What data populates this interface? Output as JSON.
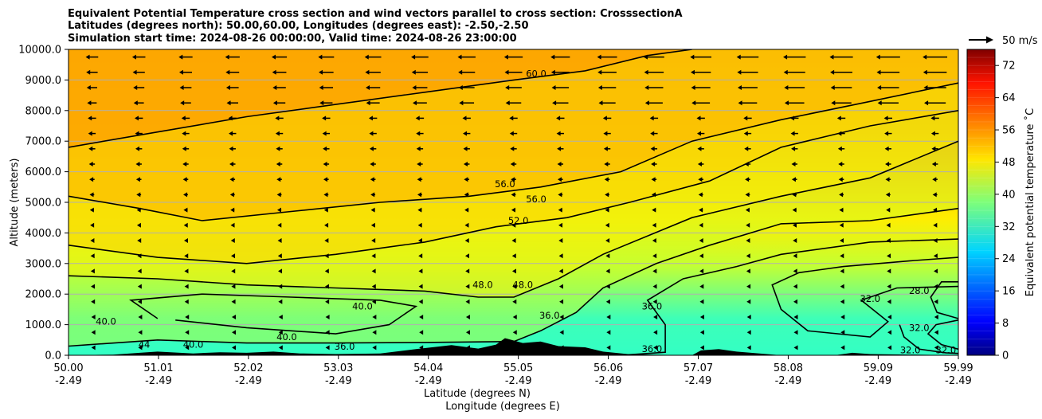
{
  "chart_data": {
    "type": "contourf",
    "title_lines": [
      "Equivalent Potential Temperature cross section and wind vectors parallel to cross section: CrosssectionA",
      "Latitudes (degrees north): 50.00,60.00, Longitudes (degrees east): -2.50,-2.50",
      "Simulation start time: 2024-08-26 00:00:00, Valid time: 2024-08-26 23:00:00"
    ],
    "xlabel_lat": "Latitude (degrees N)",
    "xlabel_lon": "Longitude (degrees E)",
    "ylabel": "Altitude (meters)",
    "x_range": [
      50.0,
      59.99
    ],
    "ylim": [
      0,
      10000
    ],
    "x_ticks": [
      {
        "lat": "50.00",
        "lon": "-2.49",
        "value": 50.0
      },
      {
        "lat": "51.01",
        "lon": "-2.49",
        "value": 51.01
      },
      {
        "lat": "52.02",
        "lon": "-2.49",
        "value": 52.02
      },
      {
        "lat": "53.03",
        "lon": "-2.49",
        "value": 53.03
      },
      {
        "lat": "54.04",
        "lon": "-2.49",
        "value": 54.04
      },
      {
        "lat": "55.05",
        "lon": "-2.49",
        "value": 55.05
      },
      {
        "lat": "56.06",
        "lon": "-2.49",
        "value": 56.06
      },
      {
        "lat": "57.07",
        "lon": "-2.49",
        "value": 57.07
      },
      {
        "lat": "58.08",
        "lon": "-2.49",
        "value": 58.08
      },
      {
        "lat": "59.09",
        "lon": "-2.49",
        "value": 59.09
      },
      {
        "lat": "59.99",
        "lon": "-2.49",
        "value": 59.99
      }
    ],
    "y_ticks": [
      "0.0",
      "1000.0",
      "2000.0",
      "3000.0",
      "4000.0",
      "5000.0",
      "6000.0",
      "7000.0",
      "8000.0",
      "9000.0",
      "10000.0"
    ],
    "grid": "horizontal",
    "colorbar": {
      "label": "Equivalent potential temperature $^\\circ$C",
      "label_text": "Equivalent potential temperature ˚C",
      "min": 0,
      "max": 76,
      "ticks": [
        "0",
        "8",
        "16",
        "24",
        "32",
        "40",
        "48",
        "56",
        "64",
        "72"
      ]
    },
    "quiver_key": {
      "label": "50 m/s",
      "value": 50
    },
    "contours": [
      {
        "level": 32,
        "label": "32.0",
        "points": [
          [
            59.33,
            1000
          ],
          [
            59.38,
            600
          ],
          [
            59.55,
            200
          ],
          [
            59.85,
            80
          ],
          [
            59.99,
            60
          ]
        ]
      },
      {
        "level": 32,
        "label": "32.0",
        "points": [
          [
            59.99,
            1150
          ],
          [
            59.74,
            1000
          ],
          [
            59.65,
            700
          ],
          [
            59.8,
            350
          ],
          [
            59.99,
            200
          ]
        ]
      },
      {
        "level": 28,
        "label": "28.0",
        "points": [
          [
            59.99,
            2400
          ],
          [
            59.8,
            2400
          ],
          [
            59.68,
            1900
          ],
          [
            59.75,
            1400
          ],
          [
            59.99,
            1200
          ]
        ]
      },
      {
        "level": 32,
        "label": "32.0",
        "points": [
          [
            59.99,
            3200
          ],
          [
            59.5,
            3100
          ],
          [
            58.7,
            2900
          ],
          [
            58.2,
            2700
          ],
          [
            57.9,
            2300
          ],
          [
            58.0,
            1500
          ],
          [
            58.3,
            800
          ],
          [
            59.0,
            600
          ],
          [
            59.2,
            1100
          ],
          [
            58.9,
            1800
          ],
          [
            59.3,
            2200
          ],
          [
            59.99,
            2250
          ]
        ]
      },
      {
        "level": 36,
        "label": "36.0",
        "points": [
          [
            56.2,
            0
          ],
          [
            56.7,
            100
          ],
          [
            56.7,
            1000
          ],
          [
            56.5,
            1800
          ],
          [
            56.9,
            2500
          ],
          [
            57.5,
            2900
          ],
          [
            58.0,
            3300
          ],
          [
            59.0,
            3700
          ],
          [
            59.99,
            3800
          ]
        ]
      },
      {
        "level": 40,
        "label": "40.0",
        "points": [
          [
            51.0,
            1200
          ],
          [
            50.7,
            1800
          ],
          [
            51.5,
            2000
          ],
          [
            52.5,
            1900
          ],
          [
            53.5,
            1800
          ],
          [
            53.9,
            1600
          ],
          [
            53.6,
            1000
          ],
          [
            53.0,
            700
          ],
          [
            52.0,
            900
          ],
          [
            51.2,
            1150
          ]
        ]
      },
      {
        "level": 44,
        "label": "44.0",
        "points": [
          [
            50.0,
            300
          ],
          [
            51.0,
            500
          ],
          [
            52.0,
            400
          ],
          [
            53.0,
            400
          ],
          [
            54.0,
            420
          ],
          [
            55.0,
            450
          ],
          [
            55.3,
            800
          ],
          [
            55.7,
            1400
          ],
          [
            56.0,
            2200
          ],
          [
            56.6,
            3000
          ],
          [
            57.2,
            3600
          ],
          [
            58.0,
            4300
          ],
          [
            59.0,
            4400
          ],
          [
            59.99,
            4800
          ]
        ]
      },
      {
        "level": 48,
        "label": "48.0",
        "points": [
          [
            50.0,
            2600
          ],
          [
            51.0,
            2500
          ],
          [
            52.0,
            2300
          ],
          [
            53.0,
            2200
          ],
          [
            54.0,
            2100
          ],
          [
            54.6,
            1900
          ],
          [
            55.0,
            1900
          ],
          [
            55.5,
            2500
          ],
          [
            56.0,
            3300
          ],
          [
            57.0,
            4500
          ],
          [
            58.0,
            5200
          ],
          [
            59.0,
            5800
          ],
          [
            59.99,
            7000
          ]
        ]
      },
      {
        "level": 52,
        "label": "52.0",
        "points": [
          [
            50.0,
            3600
          ],
          [
            51.0,
            3200
          ],
          [
            52.0,
            3000
          ],
          [
            53.0,
            3300
          ],
          [
            54.0,
            3700
          ],
          [
            54.8,
            4200
          ],
          [
            55.6,
            4500
          ],
          [
            56.3,
            5000
          ],
          [
            57.2,
            5700
          ],
          [
            58.0,
            6800
          ],
          [
            59.0,
            7500
          ],
          [
            59.99,
            8000
          ]
        ]
      },
      {
        "level": 56,
        "label": "56.0",
        "points": [
          [
            50.0,
            5200
          ],
          [
            50.8,
            4800
          ],
          [
            51.5,
            4400
          ],
          [
            52.5,
            4700
          ],
          [
            53.5,
            5000
          ],
          [
            54.5,
            5200
          ],
          [
            55.3,
            5500
          ],
          [
            56.2,
            6000
          ],
          [
            57.0,
            7000
          ],
          [
            58.0,
            7700
          ],
          [
            59.0,
            8300
          ],
          [
            59.99,
            8900
          ]
        ]
      },
      {
        "level": 60,
        "label": "60.0",
        "points": [
          [
            50.0,
            6800
          ],
          [
            51.0,
            7300
          ],
          [
            52.0,
            7800
          ],
          [
            53.0,
            8200
          ],
          [
            54.0,
            8600
          ],
          [
            55.0,
            9000
          ],
          [
            55.8,
            9300
          ],
          [
            56.5,
            9800
          ],
          [
            57.0,
            10000
          ]
        ]
      }
    ],
    "contour_labels": [
      {
        "text": "40.0",
        "x": 50.42,
        "y": 1000
      },
      {
        "text": "44",
        "x": 50.85,
        "y": 250
      },
      {
        "text": "40.0",
        "x": 51.4,
        "y": 250
      },
      {
        "text": "40.0",
        "x": 52.45,
        "y": 500
      },
      {
        "text": "40.0",
        "x": 53.3,
        "y": 1500
      },
      {
        "text": "36.0",
        "x": 53.1,
        "y": 180
      },
      {
        "text": "48.0",
        "x": 54.65,
        "y": 2200
      },
      {
        "text": "48.0",
        "x": 55.1,
        "y": 2200
      },
      {
        "text": "36.0",
        "x": 55.4,
        "y": 1200
      },
      {
        "text": "36.0",
        "x": 56.55,
        "y": 1500
      },
      {
        "text": "36.0",
        "x": 56.55,
        "y": 100
      },
      {
        "text": "52.0",
        "x": 55.05,
        "y": 4300
      },
      {
        "text": "56.0",
        "x": 54.9,
        "y": 5500
      },
      {
        "text": "56.0",
        "x": 55.25,
        "y": 5000
      },
      {
        "text": "60.0",
        "x": 55.25,
        "y": 9100
      },
      {
        "text": "32.0",
        "x": 59.0,
        "y": 1750
      },
      {
        "text": "28.0",
        "x": 59.55,
        "y": 2000
      },
      {
        "text": "32.0",
        "x": 59.55,
        "y": 800
      },
      {
        "text": "32.0",
        "x": 59.45,
        "y": 60
      },
      {
        "text": "32.0",
        "x": 59.85,
        "y": 60
      }
    ],
    "terrain": [
      [
        50.0,
        0
      ],
      [
        50.5,
        20
      ],
      [
        50.8,
        80
      ],
      [
        51.0,
        120
      ],
      [
        51.4,
        60
      ],
      [
        51.7,
        100
      ],
      [
        52.0,
        80
      ],
      [
        52.3,
        120
      ],
      [
        52.6,
        60
      ],
      [
        53.0,
        40
      ],
      [
        53.5,
        60
      ],
      [
        53.9,
        200
      ],
      [
        54.3,
        330
      ],
      [
        54.6,
        220
      ],
      [
        54.8,
        350
      ],
      [
        54.9,
        560
      ],
      [
        55.1,
        400
      ],
      [
        55.3,
        450
      ],
      [
        55.5,
        300
      ],
      [
        55.8,
        260
      ],
      [
        56.0,
        120
      ],
      [
        56.3,
        30
      ],
      [
        57.0,
        0
      ],
      [
        57.1,
        160
      ],
      [
        57.3,
        200
      ],
      [
        57.5,
        120
      ],
      [
        58.0,
        0
      ],
      [
        58.6,
        0
      ],
      [
        58.8,
        80
      ],
      [
        59.0,
        40
      ],
      [
        59.99,
        0
      ]
    ]
  }
}
